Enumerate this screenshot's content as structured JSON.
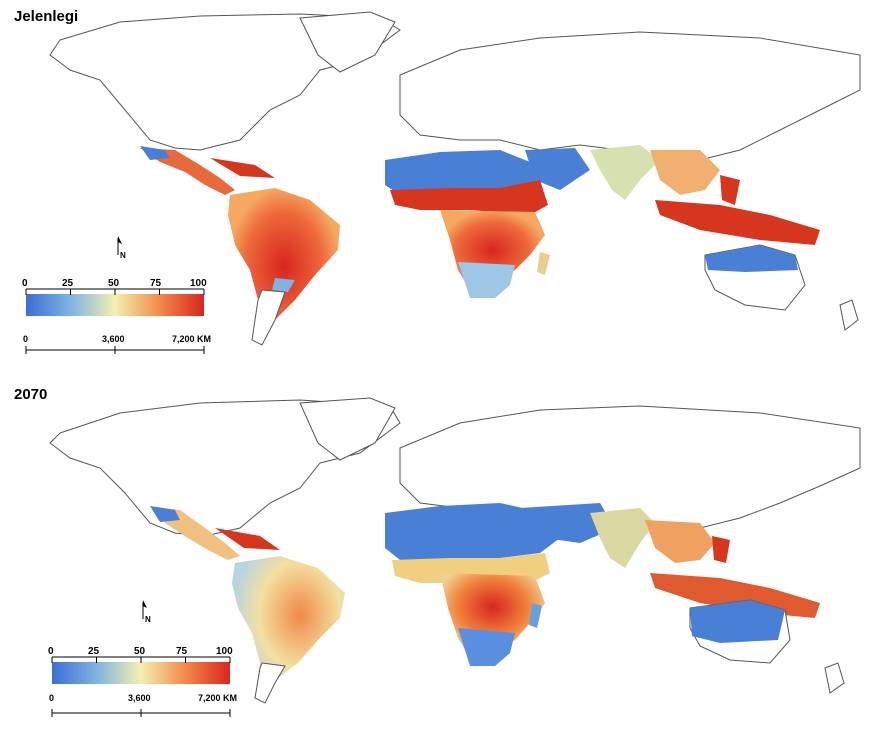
{
  "panels": [
    {
      "title": "Jelenlegi"
    },
    {
      "title": "2070"
    }
  ],
  "legend": {
    "ticks": [
      "0",
      "25",
      "50",
      "75",
      "100"
    ],
    "colors": [
      "#3b6fd4",
      "#7fb3e0",
      "#f2f0b0",
      "#f28a4a",
      "#d7261e"
    ]
  },
  "scale_bar": {
    "labels": [
      "0",
      "3,600",
      "7,200 KM"
    ]
  },
  "north_arrow": {
    "label": "N"
  }
}
